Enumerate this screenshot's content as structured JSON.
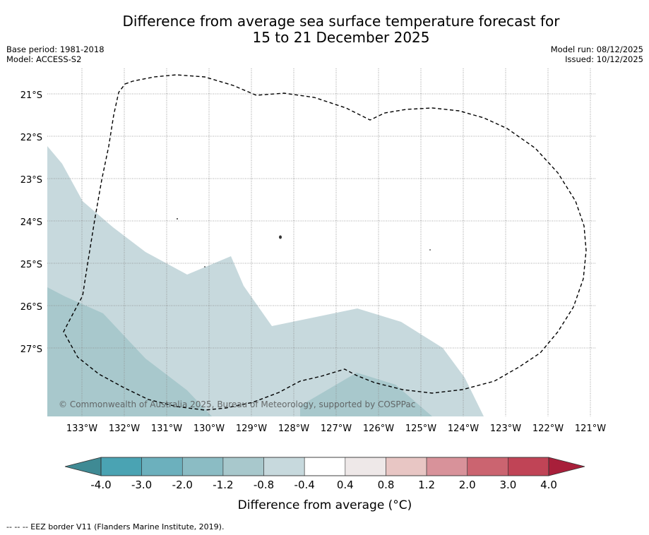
{
  "title": {
    "line1": "Difference from average sea surface temperature forecast for",
    "line2": "15 to 21 December 2025"
  },
  "meta_left": {
    "base_period": "Base period: 1981-2018",
    "model": "Model: ACCESS-S2"
  },
  "meta_right": {
    "model_run": "Model run: 08/12/2025",
    "issued": "Issued: 10/12/2025"
  },
  "map": {
    "latitude_labels": [
      "21°S",
      "22°S",
      "23°S",
      "24°S",
      "25°S",
      "26°S",
      "27°S"
    ],
    "longitude_labels": [
      "133°W",
      "132°W",
      "131°W",
      "130°W",
      "129°W",
      "128°W",
      "127°W",
      "126°W",
      "125°W",
      "124°W",
      "123°W",
      "122°W",
      "121°W"
    ],
    "copyright": "© Commonwealth of Australia 2025, Bureau of Meteorology, supported by COSPPac"
  },
  "colorbar": {
    "tick_labels": [
      "-4.0",
      "-3.0",
      "-2.0",
      "-1.2",
      "-0.8",
      "-0.4",
      "0.4",
      "0.8",
      "1.2",
      "2.0",
      "3.0",
      "4.0"
    ],
    "colors": [
      "#4aa3b3",
      "#6cb0bd",
      "#8bbcc4",
      "#a8c8cc",
      "#c7d9dd",
      "#ffffff",
      "#eee8e8",
      "#e8c6c4",
      "#d8929a",
      "#cb6470",
      "#c04456"
    ],
    "low_extend_color": "#3f8a94",
    "high_extend_color": "#a81f3a",
    "label": "Difference from average (°C)"
  },
  "footnote": "-- -- -- EEZ border V11 (Flanders Marine Institute, 2019)."
}
